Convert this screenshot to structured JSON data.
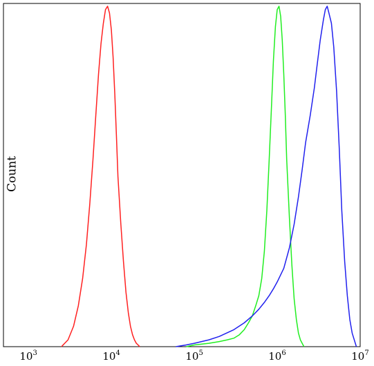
{
  "chart_data": {
    "type": "line",
    "title": "",
    "xlabel": "",
    "ylabel": "Count",
    "x_scale": "log",
    "xlim": [
      500,
      10000000
    ],
    "ylim": [
      0,
      1
    ],
    "grid": false,
    "x_ticks": [
      {
        "base": "10",
        "exp": "3",
        "value": 1000
      },
      {
        "base": "10",
        "exp": "4",
        "value": 10000
      },
      {
        "base": "10",
        "exp": "5",
        "value": 100000
      },
      {
        "base": "10",
        "exp": "6",
        "value": 1000000
      },
      {
        "base": "10",
        "exp": "7",
        "value": 10000000
      }
    ],
    "series": [
      {
        "color": "#ff2020",
        "x": [
          2500,
          3000,
          3500,
          4000,
          4500,
          5000,
          5500,
          6000,
          6500,
          7000,
          7500,
          8000,
          8500,
          9000,
          9500,
          10000,
          10500,
          11000,
          11500,
          12000,
          13000,
          14000,
          15000,
          16000,
          17000,
          18000,
          19000,
          20000,
          21000,
          22000
        ],
        "y": [
          0.0,
          0.02,
          0.06,
          0.12,
          0.2,
          0.3,
          0.42,
          0.55,
          0.68,
          0.8,
          0.89,
          0.95,
          0.99,
          1.0,
          0.98,
          0.93,
          0.85,
          0.74,
          0.62,
          0.5,
          0.36,
          0.25,
          0.16,
          0.1,
          0.06,
          0.035,
          0.02,
          0.01,
          0.005,
          0.0
        ]
      },
      {
        "color": "#20ee20",
        "x": [
          80000,
          100000,
          150000,
          200000,
          250000,
          300000,
          350000,
          400000,
          450000,
          500000,
          550000,
          600000,
          650000,
          700000,
          750000,
          800000,
          850000,
          900000,
          950000,
          1000000,
          1050000,
          1100000,
          1150000,
          1200000,
          1250000,
          1300000,
          1400000,
          1500000,
          1600000,
          1700000,
          1800000,
          1900000,
          2000000,
          2100000
        ],
        "y": [
          0.0,
          0.005,
          0.01,
          0.015,
          0.02,
          0.025,
          0.035,
          0.05,
          0.07,
          0.09,
          0.12,
          0.15,
          0.2,
          0.28,
          0.4,
          0.55,
          0.7,
          0.84,
          0.94,
          0.99,
          1.0,
          0.97,
          0.9,
          0.8,
          0.68,
          0.55,
          0.38,
          0.24,
          0.14,
          0.08,
          0.04,
          0.02,
          0.01,
          0.0
        ]
      },
      {
        "color": "#2020ee",
        "x": [
          60000,
          80000,
          100000,
          150000,
          200000,
          300000,
          400000,
          500000,
          600000,
          700000,
          800000,
          900000,
          1000000,
          1200000,
          1400000,
          1600000,
          1800000,
          2000000,
          2200000,
          2500000,
          2800000,
          3000000,
          3300000,
          3600000,
          3800000,
          4000000,
          4200000,
          4500000,
          4800000,
          5200000,
          5600000,
          6000000,
          6500000,
          7000000,
          7500000,
          8000000,
          9000000
        ],
        "y": [
          0.0,
          0.005,
          0.01,
          0.02,
          0.03,
          0.05,
          0.07,
          0.09,
          0.11,
          0.13,
          0.15,
          0.17,
          0.19,
          0.23,
          0.29,
          0.36,
          0.44,
          0.52,
          0.6,
          0.68,
          0.76,
          0.82,
          0.9,
          0.96,
          0.99,
          1.0,
          0.98,
          0.95,
          0.88,
          0.75,
          0.58,
          0.4,
          0.25,
          0.15,
          0.08,
          0.04,
          0.0
        ]
      }
    ]
  }
}
